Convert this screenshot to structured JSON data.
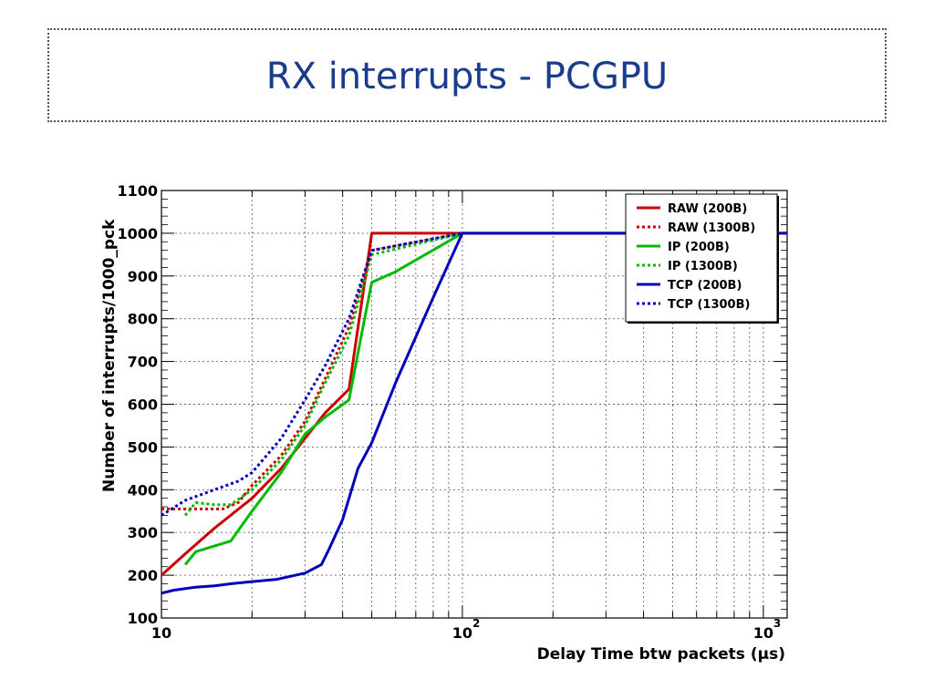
{
  "slide": {
    "title": "RX interrupts - PCGPU"
  },
  "chart_data": {
    "type": "line",
    "xscale": "log",
    "xlim": [
      10,
      1200
    ],
    "ylim": [
      100,
      1100
    ],
    "xlabel": "Delay Time btw packets (µs)",
    "ylabel": "Number of interrupts/1000_pck",
    "yticks": [
      100,
      200,
      300,
      400,
      500,
      600,
      700,
      800,
      900,
      1000,
      1100
    ],
    "xtick_labels": [
      {
        "value": 10,
        "label": "10"
      },
      {
        "value": 100,
        "label": "10",
        "exponent": "2"
      },
      {
        "value": 1000,
        "label": "10",
        "exponent": "3"
      }
    ],
    "grid": true,
    "legend_position": "top-right",
    "series": [
      {
        "name": "RAW (200B)",
        "color": "#cc0000",
        "dash": "solid",
        "x": [
          10,
          12,
          15,
          20,
          25,
          30,
          35,
          42,
          50,
          100,
          1200
        ],
        "y": [
          200,
          250,
          310,
          380,
          450,
          520,
          580,
          635,
          1000,
          1000,
          1000
        ]
      },
      {
        "name": "RAW (1300B)",
        "color": "#cc0000",
        "dash": "dotted",
        "x": [
          10,
          12,
          14,
          16,
          18,
          20,
          25,
          30,
          35,
          42,
          50,
          100
        ],
        "y": [
          355,
          355,
          355,
          355,
          370,
          410,
          480,
          560,
          660,
          780,
          960,
          1000
        ]
      },
      {
        "name": "IP (200B)",
        "color": "#00bb00",
        "dash": "solid",
        "x": [
          12,
          13,
          17,
          20,
          25,
          30,
          35,
          42,
          47,
          50,
          60,
          100
        ],
        "y": [
          225,
          255,
          280,
          350,
          440,
          530,
          570,
          610,
          790,
          885,
          910,
          1000
        ]
      },
      {
        "name": "IP (1300B)",
        "color": "#00bb00",
        "dash": "dotted",
        "x": [
          12,
          13,
          15,
          17,
          20,
          25,
          30,
          35,
          42,
          50,
          100
        ],
        "y": [
          340,
          370,
          365,
          365,
          400,
          470,
          550,
          650,
          760,
          950,
          1000
        ]
      },
      {
        "name": "TCP (200B)",
        "color": "#0000bb",
        "dash": "solid",
        "x": [
          10,
          11,
          13,
          15,
          17,
          20,
          24,
          30,
          34,
          36,
          40,
          45,
          50,
          60,
          80,
          100,
          1200
        ],
        "y": [
          158,
          165,
          172,
          175,
          180,
          185,
          190,
          205,
          225,
          260,
          330,
          450,
          510,
          650,
          850,
          1000,
          1000
        ]
      },
      {
        "name": "TCP (1300B)",
        "color": "#0000bb",
        "dash": "dotted",
        "x": [
          10,
          12,
          15,
          18,
          20,
          25,
          30,
          35,
          42,
          50,
          100
        ],
        "y": [
          340,
          375,
          400,
          420,
          440,
          520,
          610,
          690,
          800,
          960,
          1000
        ]
      }
    ]
  }
}
